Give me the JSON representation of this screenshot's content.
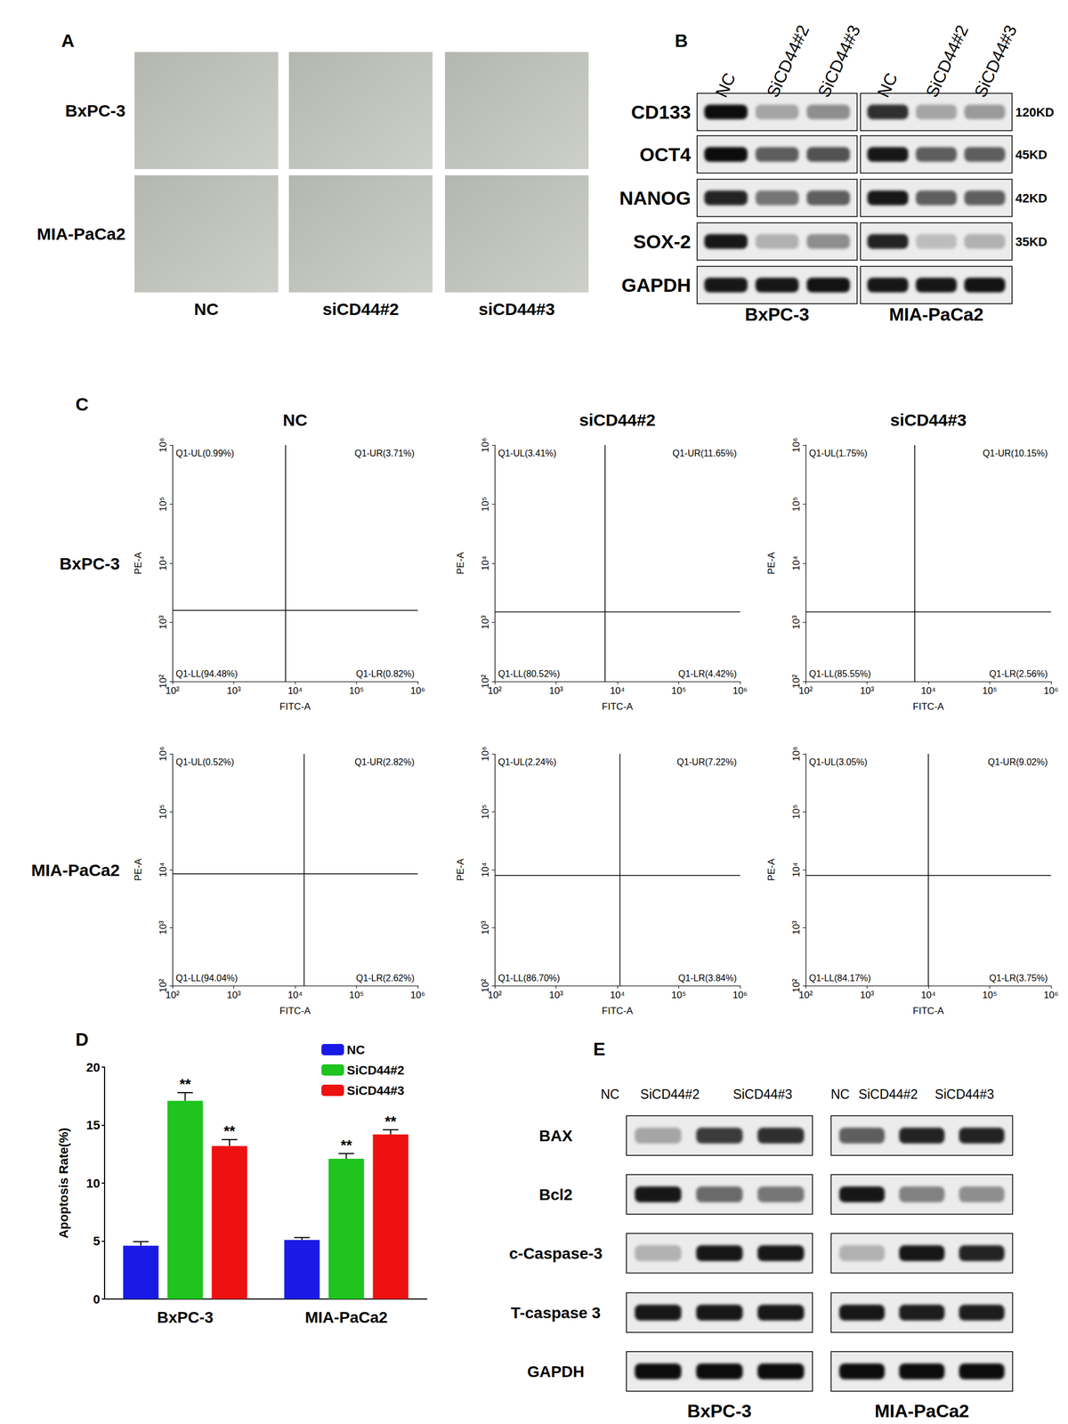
{
  "chart_data": {
    "panel": "D",
    "type": "bar",
    "y_label": "Apoptosis Rate(%)",
    "categories": [
      "BxPC-3",
      "MIA-PaCa2"
    ],
    "series": [
      {
        "name": "NC",
        "color": "#1a1ae6",
        "values": [
          4.6,
          5.1
        ],
        "errors": [
          0.35,
          0.2
        ]
      },
      {
        "name": "SiCD44#2",
        "color": "#1fc41f",
        "values": [
          17.1,
          12.1
        ],
        "errors": [
          0.7,
          0.45
        ],
        "significance": [
          "**",
          "**"
        ]
      },
      {
        "name": "SiCD44#3",
        "color": "#ee1111",
        "values": [
          13.2,
          14.2
        ],
        "errors": [
          0.55,
          0.4
        ],
        "significance": [
          "**",
          "**"
        ]
      }
    ],
    "ylim": [
      0,
      20
    ],
    "yticks": [
      0,
      5,
      10,
      15,
      20
    ],
    "grid": false,
    "legend": "upper right"
  },
  "panel_A": {
    "panel": "A",
    "rows": [
      "BxPC-3",
      "MIA-PaCa2"
    ],
    "columns": [
      "NC",
      "siCD44#2",
      "siCD44#3"
    ]
  },
  "panel_B": {
    "panel": "B",
    "cell_lines": [
      "BxPC-3",
      "MIA-PaCa2"
    ],
    "lanes": [
      "NC",
      "SiCD44#2",
      "SiCD44#3"
    ],
    "rows": [
      {
        "protein": "CD133",
        "size": "120KD",
        "band_intensity": [
          [
            0.95,
            0.3,
            0.4
          ],
          [
            0.8,
            0.3,
            0.35
          ]
        ]
      },
      {
        "protein": "OCT4",
        "size": "45KD",
        "band_intensity": [
          [
            0.95,
            0.6,
            0.65
          ],
          [
            0.9,
            0.6,
            0.6
          ]
        ]
      },
      {
        "protein": "NANOG",
        "size": "42KD",
        "band_intensity": [
          [
            0.85,
            0.5,
            0.6
          ],
          [
            0.9,
            0.6,
            0.6
          ]
        ]
      },
      {
        "protein": "SOX-2",
        "size": "35KD",
        "band_intensity": [
          [
            0.9,
            0.25,
            0.4
          ],
          [
            0.85,
            0.2,
            0.25
          ]
        ]
      },
      {
        "protein": "GAPDH",
        "band_intensity": [
          [
            0.9,
            0.9,
            0.92
          ],
          [
            0.9,
            0.9,
            0.92
          ]
        ]
      }
    ]
  },
  "panel_C": {
    "panel": "C",
    "type": "scatter",
    "log": true,
    "columns": [
      "NC",
      "siCD44#2",
      "siCD44#3"
    ],
    "rows": [
      "BxPC-3",
      "MIA-PaCa2"
    ],
    "x_label": "FITC-A",
    "y_label": "PE-A",
    "xlim": [
      100,
      1000000
    ],
    "ylim": [
      100,
      1000000
    ],
    "xticks": [
      {
        "value": 100,
        "label": "10²"
      },
      {
        "value": 1000,
        "label": "10³"
      },
      {
        "value": 10000,
        "label": "10⁴"
      },
      {
        "value": 100000,
        "label": "10⁵"
      },
      {
        "value": 1000000,
        "label": "10⁶"
      }
    ],
    "yticks": [
      {
        "value": 100,
        "label": "10²"
      },
      {
        "value": 1000,
        "label": "10³"
      },
      {
        "value": 10000,
        "label": "10⁴"
      },
      {
        "value": 100000,
        "label": "10⁵"
      },
      {
        "value": 1000000,
        "label": "10⁶"
      }
    ],
    "plots": [
      [
        {
          "gate_x": 7000,
          "gate_y": 1600,
          "quadrants": {
            "UL": "Q1-UL(0.99%)",
            "UR": "Q1-UR(3.71%)",
            "LL": "Q1-LL(94.48%)",
            "LR": "Q1-LR(0.82%)"
          }
        },
        {
          "gate_x": 6300,
          "gate_y": 1500,
          "quadrants": {
            "UL": "Q1-UL(3.41%)",
            "UR": "Q1-UR(11.65%)",
            "LL": "Q1-LL(80.52%)",
            "LR": "Q1-LR(4.42%)"
          }
        },
        {
          "gate_x": 6000,
          "gate_y": 1500,
          "quadrants": {
            "UL": "Q1-UL(1.75%)",
            "UR": "Q1-UR(10.15%)",
            "LL": "Q1-LL(85.55%)",
            "LR": "Q1-LR(2.56%)"
          }
        }
      ],
      [
        {
          "gate_x": 14000,
          "gate_y": 8500,
          "quadrants": {
            "UL": "Q1-UL(0.52%)",
            "UR": "Q1-UR(2.82%)",
            "LL": "Q1-LL(94.04%)",
            "LR": "Q1-LR(2.62%)"
          }
        },
        {
          "gate_x": 11000,
          "gate_y": 8000,
          "quadrants": {
            "UL": "Q1-UL(2.24%)",
            "UR": "Q1-UR(7.22%)",
            "LL": "Q1-LL(86.70%)",
            "LR": "Q1-LR(3.84%)"
          }
        },
        {
          "gate_x": 10000,
          "gate_y": 8000,
          "quadrants": {
            "UL": "Q1-UL(3.05%)",
            "UR": "Q1-UR(9.02%)",
            "LL": "Q1-LL(84.17%)",
            "LR": "Q1-LR(3.75%)"
          }
        }
      ]
    ]
  },
  "panel_E": {
    "panel": "E",
    "cell_lines": [
      "BxPC-3",
      "MIA-PaCa2"
    ],
    "lanes": [
      "NC",
      "SiCD44#2",
      "SiCD44#3"
    ],
    "rows": [
      {
        "protein": "BAX",
        "band_intensity": [
          [
            0.3,
            0.75,
            0.8
          ],
          [
            0.6,
            0.85,
            0.85
          ]
        ]
      },
      {
        "protein": "Bcl2",
        "band_intensity": [
          [
            0.9,
            0.55,
            0.5
          ],
          [
            0.9,
            0.45,
            0.4
          ]
        ]
      },
      {
        "protein": "c-Caspase-3",
        "band_intensity": [
          [
            0.25,
            0.9,
            0.9
          ],
          [
            0.25,
            0.9,
            0.85
          ]
        ]
      },
      {
        "protein": "T-caspase 3",
        "band_intensity": [
          [
            0.9,
            0.9,
            0.9
          ],
          [
            0.9,
            0.88,
            0.88
          ]
        ]
      },
      {
        "protein": "GAPDH",
        "band_intensity": [
          [
            0.95,
            0.95,
            0.95
          ],
          [
            0.95,
            0.95,
            0.95
          ]
        ]
      }
    ]
  }
}
